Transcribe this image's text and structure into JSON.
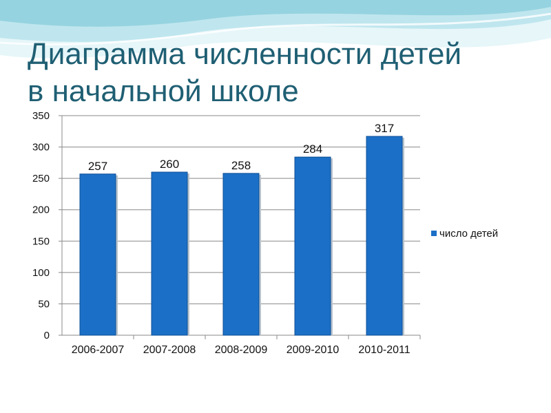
{
  "slide": {
    "title_line1": "Диаграмма численности детей",
    "title_line2": "в начальной школе"
  },
  "colors": {
    "bar": "#1b6fc6",
    "bar_edge": "#0f4f96",
    "title": "#1f5f73",
    "wave_light": "#dff3f7",
    "wave_mid": "#b7e3ec",
    "wave_dark": "#8fd0de"
  },
  "chart_data": {
    "type": "bar",
    "categories": [
      "2006-2007",
      "2007-2008",
      "2008-2009",
      "2009-2010",
      "2010-2011"
    ],
    "series": [
      {
        "name": "число детей",
        "values": [
          257,
          260,
          258,
          284,
          317
        ]
      }
    ],
    "data_labels": [
      "257",
      "260",
      "258",
      "284",
      "317"
    ],
    "ylim": [
      0,
      350
    ],
    "yticks": [
      0,
      50,
      100,
      150,
      200,
      250,
      300,
      350
    ],
    "grid": true,
    "legend_position": "right",
    "xlabel": "",
    "ylabel": ""
  }
}
